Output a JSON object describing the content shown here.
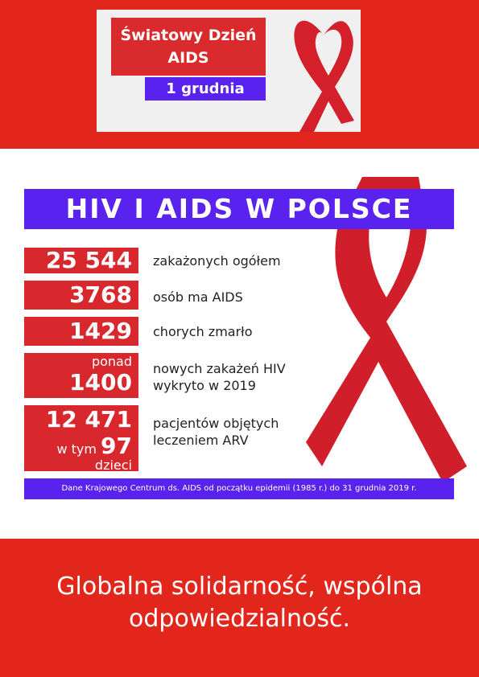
{
  "top_card": {
    "title_line1": "Światowy Dzień",
    "title_line2": "AIDS",
    "date": "1 grudnia"
  },
  "info": {
    "header": "HIV I AIDS W POLSCE",
    "stats": [
      {
        "value": "25 544",
        "label": "zakażonych ogółem"
      },
      {
        "value": "3768",
        "label": "osób ma AIDS"
      },
      {
        "value": "1429",
        "label": "chorych zmarło"
      },
      {
        "prefix": "ponad",
        "value": "1400",
        "label_line1": "nowych zakażeń HIV",
        "label_line2": "wykryto w 2019"
      },
      {
        "value": "12 471",
        "sub_prefix": "w tym",
        "sub_value": "97",
        "suffix": "dzieci",
        "label_line1": "pacjentów objętych",
        "label_line2": "leczeniem ARV"
      }
    ],
    "footnote": "Dane Krajowego Centrum ds. AIDS od początku epidemii (1985 r.) do 31 grudnia 2019 r."
  },
  "slogan": {
    "line1": "Globalna solidarność, wspólna",
    "line2": "odpowiedzialność."
  },
  "colors": {
    "red": "#e3261b",
    "box_red": "#d9282d",
    "purple": "#5a22ef",
    "ribbon": "#c81e2a"
  },
  "icons": {
    "top_ribbon": "aids-ribbon-icon",
    "big_ribbon": "aids-ribbon-icon"
  }
}
